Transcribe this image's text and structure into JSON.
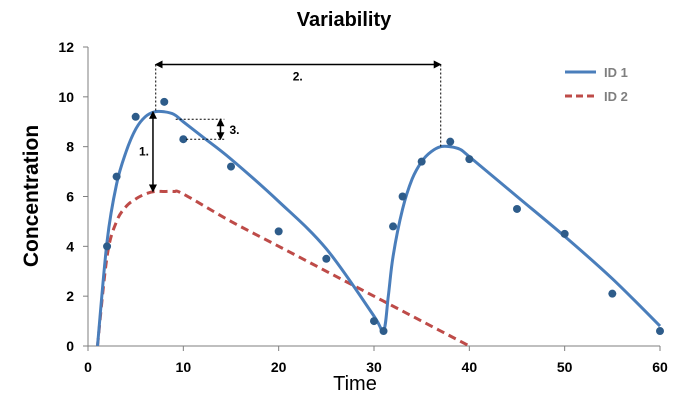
{
  "chart_data": {
    "type": "line",
    "title": "Variability",
    "xlabel": "Time",
    "ylabel": "Concentration",
    "xlim": [
      0,
      60
    ],
    "ylim": [
      0,
      12
    ],
    "x_ticks": [
      0,
      10,
      20,
      30,
      40,
      50,
      60
    ],
    "y_ticks": [
      0,
      2,
      4,
      6,
      8,
      10,
      12
    ],
    "grid": false,
    "legend_position": "top-right",
    "colors": {
      "id1": "#4a7ebb",
      "id2": "#be4b48",
      "points": "#2e5c8a"
    },
    "series": [
      {
        "name": "ID 1",
        "style": "solid",
        "x": [
          1,
          2,
          3,
          4,
          5,
          6,
          7,
          8,
          9,
          10,
          12,
          15,
          20,
          25,
          30,
          31,
          31.5,
          32,
          33,
          34,
          35,
          36,
          37,
          38,
          39,
          40,
          45,
          50,
          55,
          60
        ],
        "y": [
          0,
          4.2,
          6.5,
          7.8,
          8.7,
          9.2,
          9.4,
          9.4,
          9.3,
          9.0,
          8.4,
          7.5,
          5.8,
          3.9,
          1.2,
          0.6,
          2.0,
          3.6,
          5.5,
          6.7,
          7.4,
          7.8,
          8.0,
          8.0,
          7.9,
          7.6,
          6.0,
          4.4,
          2.7,
          0.8
        ]
      },
      {
        "name": "ID 2",
        "style": "dashed",
        "x": [
          1,
          2,
          3,
          4,
          5,
          6,
          7,
          8,
          9,
          10,
          15,
          20,
          25,
          30,
          35,
          40
        ],
        "y": [
          0,
          3.6,
          5.0,
          5.6,
          5.9,
          6.1,
          6.2,
          6.2,
          6.2,
          6.1,
          5.0,
          4.0,
          3.0,
          2.0,
          1.0,
          0
        ]
      },
      {
        "name": "observations",
        "style": "points",
        "x": [
          2,
          3,
          5,
          8,
          10,
          15,
          20,
          25,
          30,
          31,
          32,
          33,
          35,
          38,
          40,
          45,
          50,
          55,
          60
        ],
        "y": [
          4.0,
          6.8,
          9.2,
          9.8,
          8.3,
          7.2,
          4.6,
          3.5,
          1.0,
          0.6,
          4.8,
          6.0,
          7.4,
          8.2,
          7.5,
          5.5,
          4.5,
          2.1,
          0.6
        ]
      }
    ],
    "annotations": [
      {
        "label": "1.",
        "x": 6.5,
        "y_from": 6.2,
        "y_to": 9.4
      },
      {
        "label": "2.",
        "x_from": 7,
        "x_to": 37,
        "y": 11.3
      },
      {
        "label": "3.",
        "x": 14,
        "y_from": 8.3,
        "y_to": 9.1
      }
    ]
  }
}
